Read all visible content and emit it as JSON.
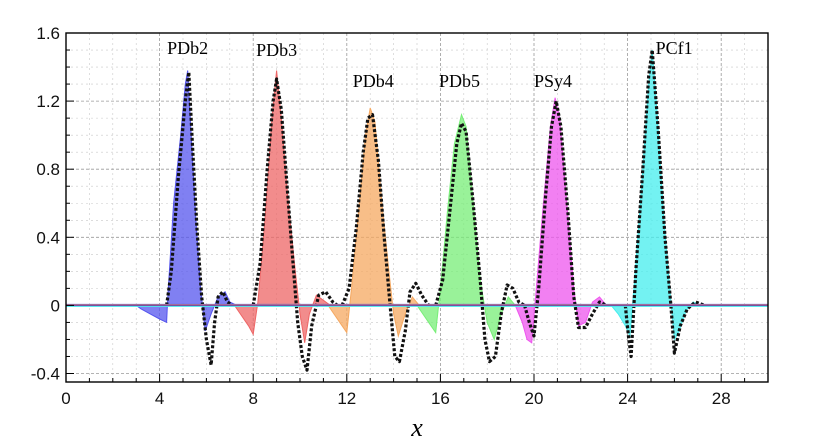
{
  "chart_data": {
    "type": "area",
    "xlabel": "x",
    "ylabel": "",
    "xlim": [
      0,
      30
    ],
    "ylim": [
      -0.45,
      1.6
    ],
    "xticks": [
      0,
      4,
      8,
      12,
      16,
      20,
      24,
      28
    ],
    "xtick_labels": [
      "0",
      "4",
      "8",
      "12",
      "16",
      "20",
      "24",
      "28"
    ],
    "yticks": [
      -0.4,
      0,
      0.4,
      0.8,
      1.2,
      1.6
    ],
    "ytick_labels": [
      "-0.4",
      "0",
      "0.4",
      "0.8",
      "1.2",
      "1.6"
    ],
    "grid": true,
    "series": [
      {
        "name": "PDb2",
        "color": "#5555ee",
        "points": [
          [
            3.0,
            0
          ],
          [
            3.2,
            -0.02
          ],
          [
            3.6,
            -0.05
          ],
          [
            4.0,
            -0.08
          ],
          [
            4.3,
            -0.1
          ],
          [
            4.35,
            0.05
          ],
          [
            4.6,
            0.6
          ],
          [
            4.9,
            1.0
          ],
          [
            5.1,
            1.3
          ],
          [
            5.2,
            1.38
          ],
          [
            5.35,
            1.0
          ],
          [
            5.55,
            0.5
          ],
          [
            5.75,
            0.1
          ],
          [
            5.95,
            -0.15
          ],
          [
            6.2,
            -0.05
          ],
          [
            6.5,
            0.05
          ],
          [
            6.8,
            0.08
          ],
          [
            7.0,
            0.02
          ],
          [
            7.3,
            0
          ]
        ],
        "reference": [
          [
            4.3,
            0
          ],
          [
            4.5,
            0.2
          ],
          [
            4.8,
            0.75
          ],
          [
            5.0,
            1.05
          ],
          [
            5.1,
            1.2
          ],
          [
            5.25,
            1.37
          ],
          [
            5.4,
            0.95
          ],
          [
            5.6,
            0.45
          ],
          [
            5.8,
            0.05
          ],
          [
            6.0,
            -0.2
          ],
          [
            6.2,
            -0.35
          ],
          [
            6.35,
            -0.1
          ],
          [
            6.5,
            0.05
          ],
          [
            6.7,
            0.08
          ],
          [
            6.9,
            0.02
          ],
          [
            7.1,
            0
          ]
        ]
      },
      {
        "name": "PDb3",
        "color": "#ee6666",
        "points": [
          [
            7.2,
            0
          ],
          [
            7.5,
            -0.06
          ],
          [
            7.8,
            -0.12
          ],
          [
            8.0,
            -0.17
          ],
          [
            8.2,
            0.02
          ],
          [
            8.5,
            0.5
          ],
          [
            8.8,
            1.1
          ],
          [
            9.0,
            1.38
          ],
          [
            9.2,
            1.1
          ],
          [
            9.5,
            0.6
          ],
          [
            9.8,
            0.2
          ],
          [
            10.0,
            -0.05
          ],
          [
            10.2,
            -0.22
          ],
          [
            10.4,
            -0.05
          ],
          [
            10.7,
            0.06
          ],
          [
            11.0,
            0.03
          ],
          [
            11.3,
            0
          ]
        ],
        "reference": [
          [
            8.0,
            0
          ],
          [
            8.3,
            0.25
          ],
          [
            8.6,
            0.8
          ],
          [
            8.85,
            1.2
          ],
          [
            9.0,
            1.33
          ],
          [
            9.2,
            1.15
          ],
          [
            9.45,
            0.7
          ],
          [
            9.7,
            0.25
          ],
          [
            9.9,
            -0.1
          ],
          [
            10.1,
            -0.3
          ],
          [
            10.3,
            -0.38
          ],
          [
            10.5,
            -0.12
          ],
          [
            10.8,
            0.06
          ],
          [
            11.1,
            0.08
          ],
          [
            11.4,
            0.02
          ],
          [
            11.6,
            0
          ]
        ]
      },
      {
        "name": "PDb4",
        "color": "#f5a860",
        "points": [
          [
            11.2,
            0
          ],
          [
            11.5,
            -0.06
          ],
          [
            11.8,
            -0.12
          ],
          [
            12.0,
            -0.16
          ],
          [
            12.2,
            0.1
          ],
          [
            12.5,
            0.55
          ],
          [
            12.8,
            1.0
          ],
          [
            13.0,
            1.16
          ],
          [
            13.2,
            1.08
          ],
          [
            13.5,
            0.6
          ],
          [
            13.8,
            0.2
          ],
          [
            14.0,
            -0.05
          ],
          [
            14.2,
            -0.18
          ],
          [
            14.5,
            -0.05
          ],
          [
            14.8,
            0.05
          ],
          [
            15.1,
            0
          ]
        ],
        "reference": [
          [
            11.8,
            0
          ],
          [
            12.1,
            0.1
          ],
          [
            12.4,
            0.45
          ],
          [
            12.7,
            0.9
          ],
          [
            12.9,
            1.1
          ],
          [
            13.1,
            1.12
          ],
          [
            13.35,
            0.85
          ],
          [
            13.6,
            0.4
          ],
          [
            13.85,
            0.0
          ],
          [
            14.05,
            -0.3
          ],
          [
            14.25,
            -0.33
          ],
          [
            14.5,
            -0.15
          ],
          [
            14.7,
            0.08
          ],
          [
            14.95,
            0.13
          ],
          [
            15.2,
            0.06
          ],
          [
            15.5,
            0
          ]
        ]
      },
      {
        "name": "PDb5",
        "color": "#77ee77",
        "points": [
          [
            15.0,
            0
          ],
          [
            15.3,
            -0.06
          ],
          [
            15.6,
            -0.12
          ],
          [
            15.8,
            -0.16
          ],
          [
            16.0,
            0.1
          ],
          [
            16.3,
            0.55
          ],
          [
            16.6,
            0.95
          ],
          [
            16.9,
            1.12
          ],
          [
            17.1,
            1.05
          ],
          [
            17.4,
            0.6
          ],
          [
            17.7,
            0.15
          ],
          [
            18.0,
            -0.1
          ],
          [
            18.3,
            -0.2
          ],
          [
            18.6,
            -0.05
          ],
          [
            18.9,
            0.05
          ],
          [
            19.2,
            0
          ]
        ],
        "reference": [
          [
            15.8,
            0
          ],
          [
            16.1,
            0.15
          ],
          [
            16.4,
            0.55
          ],
          [
            16.7,
            0.95
          ],
          [
            16.9,
            1.07
          ],
          [
            17.1,
            1.02
          ],
          [
            17.4,
            0.6
          ],
          [
            17.7,
            0.15
          ],
          [
            17.9,
            -0.2
          ],
          [
            18.1,
            -0.33
          ],
          [
            18.35,
            -0.3
          ],
          [
            18.6,
            -0.05
          ],
          [
            18.85,
            0.12
          ],
          [
            19.1,
            0.1
          ],
          [
            19.35,
            0.02
          ],
          [
            19.6,
            0
          ]
        ]
      },
      {
        "name": "PSy4",
        "color": "#ee55ee",
        "points": [
          [
            19.2,
            0
          ],
          [
            19.5,
            -0.1
          ],
          [
            19.7,
            -0.2
          ],
          [
            19.9,
            -0.22
          ],
          [
            20.1,
            0.1
          ],
          [
            20.4,
            0.6
          ],
          [
            20.7,
            1.05
          ],
          [
            20.9,
            1.22
          ],
          [
            21.1,
            1.1
          ],
          [
            21.4,
            0.6
          ],
          [
            21.7,
            0.1
          ],
          [
            21.9,
            -0.12
          ],
          [
            22.2,
            -0.1
          ],
          [
            22.5,
            0.02
          ],
          [
            22.8,
            0.05
          ],
          [
            23.1,
            0
          ]
        ],
        "reference": [
          [
            19.6,
            0
          ],
          [
            19.8,
            -0.1
          ],
          [
            20.0,
            -0.18
          ],
          [
            20.2,
            0.1
          ],
          [
            20.5,
            0.65
          ],
          [
            20.75,
            1.05
          ],
          [
            20.95,
            1.2
          ],
          [
            21.15,
            1.05
          ],
          [
            21.45,
            0.55
          ],
          [
            21.7,
            0.05
          ],
          [
            21.9,
            -0.13
          ],
          [
            22.2,
            -0.13
          ],
          [
            22.5,
            -0.05
          ],
          [
            22.8,
            0.02
          ],
          [
            23.1,
            0
          ]
        ]
      },
      {
        "name": "PCf1",
        "color": "#44eeee",
        "points": [
          [
            23.3,
            0
          ],
          [
            23.6,
            -0.05
          ],
          [
            23.9,
            -0.12
          ],
          [
            24.1,
            -0.18
          ],
          [
            24.3,
            0.15
          ],
          [
            24.6,
            0.7
          ],
          [
            24.9,
            1.3
          ],
          [
            25.05,
            1.5
          ],
          [
            25.25,
            1.15
          ],
          [
            25.55,
            0.5
          ],
          [
            25.8,
            0.1
          ],
          [
            26.0,
            -0.2
          ],
          [
            26.2,
            -0.15
          ],
          [
            26.5,
            -0.03
          ],
          [
            26.8,
            0.02
          ],
          [
            27.1,
            0
          ]
        ],
        "reference": [
          [
            23.9,
            0
          ],
          [
            24.05,
            -0.2
          ],
          [
            24.15,
            -0.3
          ],
          [
            24.35,
            0.2
          ],
          [
            24.65,
            0.8
          ],
          [
            24.9,
            1.35
          ],
          [
            25.05,
            1.5
          ],
          [
            25.3,
            1.05
          ],
          [
            25.6,
            0.4
          ],
          [
            25.85,
            0.0
          ],
          [
            26.0,
            -0.28
          ],
          [
            26.25,
            -0.12
          ],
          [
            26.55,
            -0.02
          ],
          [
            26.9,
            0.02
          ],
          [
            27.3,
            0
          ]
        ]
      }
    ],
    "baseline_colors": [
      "#5555ee",
      "#ee6666",
      "#f5a860",
      "#77ee77",
      "#ee55ee",
      "#44eeee"
    ],
    "reference_color": "#111111"
  }
}
